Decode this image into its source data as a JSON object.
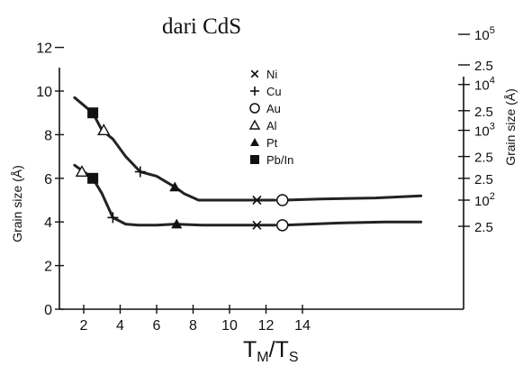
{
  "chart_data": {
    "type": "line",
    "title": "dari CdS",
    "xlabel": "T_M/T_S",
    "ylabel_left": "Grain size (Å)",
    "ylabel_right": "Grain size (Å)",
    "xlim": [
      0,
      21
    ],
    "ylim": [
      0,
      13
    ],
    "x_ticks": [
      2,
      4,
      6,
      8,
      10,
      12,
      14
    ],
    "y_ticks": [
      0,
      2,
      4,
      6,
      8,
      10,
      12
    ],
    "right_ticks": [
      {
        "y": 12.6,
        "base": "10",
        "exp": "5"
      },
      {
        "y": 11.2,
        "label": "2.5"
      },
      {
        "y": 10.3,
        "base": "10",
        "exp": "4"
      },
      {
        "y": 9.1,
        "label": "2.5"
      },
      {
        "y": 8.2,
        "base": "10",
        "exp": "3"
      },
      {
        "y": 7.0,
        "label": "2.5"
      },
      {
        "y": 6.0,
        "label": "2.5"
      },
      {
        "y": 5.0,
        "base": "10",
        "exp": "2"
      },
      {
        "y": 3.8,
        "label": "2.5"
      }
    ],
    "series": [
      {
        "points": [
          [
            1.5,
            9.7
          ],
          [
            2.5,
            9.0
          ],
          [
            3.0,
            8.2
          ],
          [
            3.6,
            7.8
          ],
          [
            4.3,
            7.0
          ],
          [
            5.1,
            6.3
          ],
          [
            6.0,
            6.1
          ],
          [
            7.0,
            5.6
          ],
          [
            7.5,
            5.3
          ],
          [
            8.3,
            5.0
          ],
          [
            9.5,
            5.0
          ],
          [
            11.5,
            5.0
          ],
          [
            12.5,
            5.0
          ]
        ]
      },
      {
        "points": [
          [
            1.5,
            6.6
          ],
          [
            2.0,
            6.3
          ],
          [
            2.5,
            6.0
          ],
          [
            3.0,
            5.3
          ],
          [
            3.6,
            4.2
          ],
          [
            4.3,
            3.9
          ],
          [
            5.0,
            3.85
          ],
          [
            6.0,
            3.85
          ],
          [
            7.0,
            3.9
          ],
          [
            8.5,
            3.85
          ],
          [
            11.5,
            3.85
          ],
          [
            12.5,
            3.85
          ]
        ]
      },
      {
        "points": [
          [
            13.0,
            5.0
          ],
          [
            15.0,
            5.05
          ],
          [
            18.0,
            5.1
          ],
          [
            20.5,
            5.2
          ]
        ]
      },
      {
        "points": [
          [
            13.0,
            3.85
          ],
          [
            16.0,
            3.95
          ],
          [
            18.5,
            4.0
          ],
          [
            20.5,
            4.0
          ]
        ]
      }
    ],
    "markers": [
      {
        "type": "Pb/In",
        "shape": "square",
        "x": 2.5,
        "y": 9.0
      },
      {
        "type": "Al",
        "shape": "triangle-open",
        "x": 3.1,
        "y": 8.2
      },
      {
        "type": "Cu",
        "shape": "plus",
        "x": 5.1,
        "y": 6.3
      },
      {
        "type": "Pt",
        "shape": "triangle",
        "x": 7.0,
        "y": 5.6
      },
      {
        "type": "Ni",
        "shape": "x",
        "x": 11.5,
        "y": 5.0
      },
      {
        "type": "Au",
        "shape": "circle",
        "x": 12.9,
        "y": 5.0
      },
      {
        "type": "Al",
        "shape": "triangle-open",
        "x": 1.9,
        "y": 6.3
      },
      {
        "type": "Pb/In",
        "shape": "square",
        "x": 2.5,
        "y": 6.0
      },
      {
        "type": "Cu",
        "shape": "plus",
        "x": 3.6,
        "y": 4.2
      },
      {
        "type": "Pt",
        "shape": "triangle",
        "x": 7.1,
        "y": 3.9
      },
      {
        "type": "Ni",
        "shape": "x",
        "x": 11.5,
        "y": 3.85
      },
      {
        "type": "Au",
        "shape": "circle",
        "x": 12.9,
        "y": 3.85
      }
    ],
    "legend": [
      {
        "shape": "x",
        "label": "Ni"
      },
      {
        "shape": "plus",
        "label": "Cu"
      },
      {
        "shape": "circle",
        "label": "Au"
      },
      {
        "shape": "triangle-open",
        "label": "Al"
      },
      {
        "shape": "triangle",
        "label": "Pt"
      },
      {
        "shape": "square",
        "label": "Pb/In"
      }
    ],
    "legend_position": "top-center",
    "grid": false
  }
}
